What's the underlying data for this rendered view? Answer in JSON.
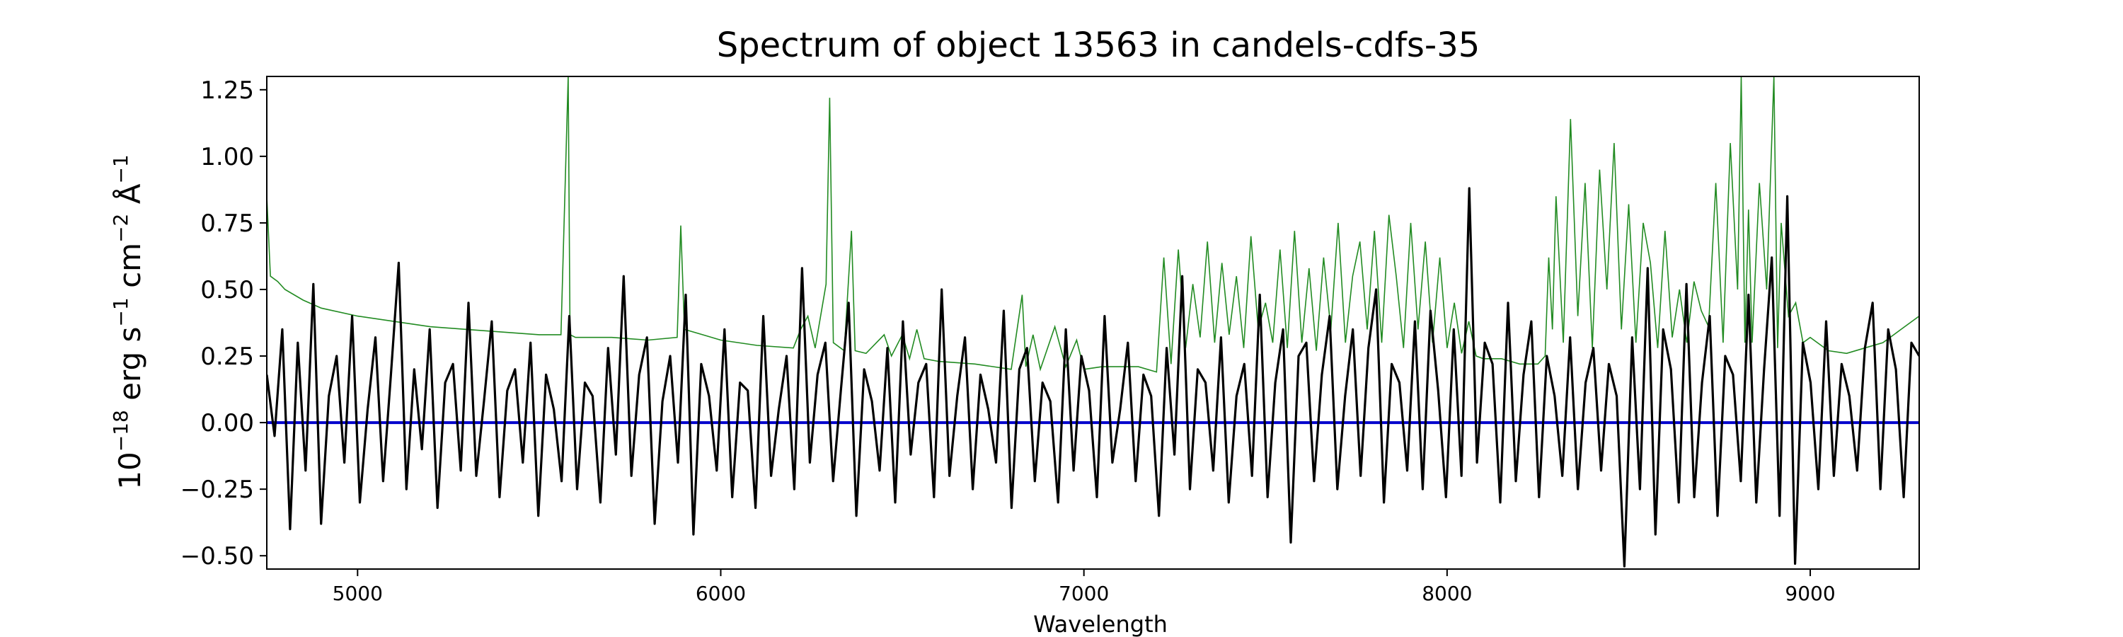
{
  "chart_data": {
    "type": "line",
    "title": "Spectrum of object 13563 in candels-cdfs-35",
    "xlabel": "Wavelength",
    "ylabel": {
      "prefix": "10",
      "exp1": "−18",
      "unit1": " erg s",
      "exp2": "−1",
      "unit2": " cm",
      "exp3": "−2",
      "unit3": " Å",
      "exp4": "−1"
    },
    "xlim": [
      4750,
      9300
    ],
    "ylim": [
      -0.55,
      1.3
    ],
    "x_ticks": [
      5000,
      6000,
      7000,
      8000,
      9000
    ],
    "x_tick_labels": [
      "5000",
      "6000",
      "7000",
      "8000",
      "9000"
    ],
    "y_ticks": [
      -0.5,
      -0.25,
      0.0,
      0.25,
      0.5,
      0.75,
      1.0,
      1.25
    ],
    "y_tick_labels": [
      "−0.50",
      "−0.25",
      "0.00",
      "0.25",
      "0.50",
      "0.75",
      "1.00",
      "1.25"
    ],
    "grid": false,
    "series": [
      {
        "role": "error",
        "color": "#228B22",
        "x": [
          4750,
          4760,
          4780,
          4800,
          4850,
          4900,
          5000,
          5100,
          5200,
          5300,
          5400,
          5500,
          5560,
          5580,
          5585,
          5600,
          5700,
          5800,
          5880,
          5890,
          5900,
          5950,
          6000,
          6100,
          6200,
          6220,
          6240,
          6260,
          6290,
          6300,
          6310,
          6340,
          6360,
          6370,
          6400,
          6450,
          6470,
          6500,
          6520,
          6540,
          6560,
          6600,
          6700,
          6800,
          6830,
          6840,
          6860,
          6880,
          6920,
          6950,
          6980,
          7000,
          7050,
          7100,
          7150,
          7200,
          7220,
          7240,
          7260,
          7280,
          7300,
          7320,
          7340,
          7360,
          7380,
          7400,
          7420,
          7440,
          7460,
          7480,
          7500,
          7520,
          7540,
          7560,
          7580,
          7600,
          7620,
          7640,
          7660,
          7680,
          7700,
          7720,
          7740,
          7760,
          7780,
          7800,
          7820,
          7840,
          7860,
          7880,
          7900,
          7920,
          7940,
          7960,
          7980,
          8000,
          8020,
          8040,
          8060,
          8080,
          8100,
          8150,
          8200,
          8250,
          8270,
          8280,
          8290,
          8300,
          8320,
          8340,
          8360,
          8380,
          8400,
          8420,
          8440,
          8460,
          8480,
          8500,
          8520,
          8540,
          8560,
          8580,
          8600,
          8620,
          8640,
          8660,
          8680,
          8700,
          8720,
          8740,
          8760,
          8780,
          8800,
          8810,
          8820,
          8830,
          8840,
          8860,
          8880,
          8900,
          8910,
          8920,
          8940,
          8960,
          8980,
          9000,
          9050,
          9100,
          9150,
          9200,
          9250,
          9280,
          9300
        ],
        "y": [
          0.85,
          0.55,
          0.53,
          0.5,
          0.46,
          0.43,
          0.4,
          0.38,
          0.36,
          0.35,
          0.34,
          0.33,
          0.33,
          1.3,
          0.33,
          0.32,
          0.32,
          0.31,
          0.32,
          0.74,
          0.35,
          0.33,
          0.31,
          0.29,
          0.28,
          0.35,
          0.4,
          0.28,
          0.52,
          1.22,
          0.3,
          0.27,
          0.72,
          0.27,
          0.26,
          0.33,
          0.25,
          0.33,
          0.24,
          0.35,
          0.24,
          0.23,
          0.22,
          0.2,
          0.48,
          0.21,
          0.33,
          0.2,
          0.36,
          0.21,
          0.31,
          0.2,
          0.21,
          0.21,
          0.21,
          0.19,
          0.62,
          0.22,
          0.65,
          0.28,
          0.52,
          0.32,
          0.68,
          0.3,
          0.6,
          0.33,
          0.55,
          0.28,
          0.7,
          0.35,
          0.45,
          0.3,
          0.65,
          0.28,
          0.72,
          0.3,
          0.58,
          0.27,
          0.62,
          0.35,
          0.75,
          0.3,
          0.55,
          0.68,
          0.35,
          0.72,
          0.3,
          0.78,
          0.55,
          0.28,
          0.75,
          0.35,
          0.68,
          0.3,
          0.62,
          0.28,
          0.45,
          0.26,
          0.38,
          0.25,
          0.24,
          0.24,
          0.22,
          0.22,
          0.25,
          0.62,
          0.35,
          0.85,
          0.3,
          1.14,
          0.4,
          0.9,
          0.28,
          0.95,
          0.5,
          1.05,
          0.35,
          0.82,
          0.3,
          0.75,
          0.6,
          0.28,
          0.72,
          0.32,
          0.5,
          0.3,
          0.53,
          0.42,
          0.36,
          0.9,
          0.3,
          1.05,
          0.5,
          1.3,
          0.3,
          0.8,
          0.3,
          0.9,
          0.5,
          1.3,
          0.28,
          0.75,
          0.4,
          0.45,
          0.3,
          0.32,
          0.27,
          0.26,
          0.28,
          0.3,
          0.35,
          0.38,
          0.4
        ]
      },
      {
        "role": "zero",
        "color": "#0000CC",
        "y_value": 0.0
      },
      {
        "role": "flux",
        "color": "#000000",
        "x_start": 4750,
        "x_end": 9300,
        "y": [
          0.18,
          -0.05,
          0.35,
          -0.4,
          0.3,
          -0.18,
          0.52,
          -0.38,
          0.1,
          0.25,
          -0.15,
          0.4,
          -0.3,
          0.05,
          0.32,
          -0.22,
          0.18,
          0.6,
          -0.25,
          0.2,
          -0.1,
          0.35,
          -0.32,
          0.15,
          0.22,
          -0.18,
          0.45,
          -0.2,
          0.08,
          0.38,
          -0.28,
          0.12,
          0.2,
          -0.15,
          0.3,
          -0.35,
          0.18,
          0.05,
          -0.22,
          0.4,
          -0.25,
          0.15,
          0.1,
          -0.3,
          0.28,
          -0.12,
          0.55,
          -0.2,
          0.18,
          0.32,
          -0.38,
          0.08,
          0.25,
          -0.15,
          0.48,
          -0.42,
          0.22,
          0.1,
          -0.18,
          0.35,
          -0.28,
          0.15,
          0.12,
          -0.32,
          0.4,
          -0.2,
          0.05,
          0.25,
          -0.25,
          0.58,
          -0.15,
          0.18,
          0.3,
          -0.22,
          0.12,
          0.45,
          -0.35,
          0.2,
          0.08,
          -0.18,
          0.28,
          -0.3,
          0.38,
          -0.12,
          0.15,
          0.22,
          -0.28,
          0.5,
          -0.2,
          0.1,
          0.32,
          -0.25,
          0.18,
          0.05,
          -0.15,
          0.42,
          -0.32,
          0.2,
          0.28,
          -0.22,
          0.15,
          0.08,
          -0.3,
          0.35,
          -0.18,
          0.25,
          0.12,
          -0.28,
          0.4,
          -0.15,
          0.05,
          0.3,
          -0.22,
          0.18,
          0.1,
          -0.35,
          0.28,
          -0.12,
          0.55,
          -0.25,
          0.2,
          0.15,
          -0.18,
          0.32,
          -0.3,
          0.1,
          0.22,
          -0.2,
          0.48,
          -0.28,
          0.15,
          0.35,
          -0.45,
          0.25,
          0.3,
          -0.22,
          0.18,
          0.4,
          -0.25,
          0.1,
          0.35,
          -0.2,
          0.28,
          0.5,
          -0.3,
          0.22,
          0.15,
          -0.18,
          0.38,
          -0.25,
          0.42,
          0.12,
          -0.28,
          0.35,
          -0.2,
          0.88,
          -0.15,
          0.3,
          0.22,
          -0.3,
          0.45,
          -0.22,
          0.18,
          0.38,
          -0.28,
          0.25,
          0.1,
          -0.2,
          0.32,
          -0.25,
          0.15,
          0.28,
          -0.18,
          0.22,
          0.1,
          -0.54,
          0.32,
          -0.25,
          0.58,
          -0.42,
          0.35,
          0.2,
          -0.3,
          0.52,
          -0.28,
          0.15,
          0.4,
          -0.35,
          0.25,
          0.18,
          -0.22,
          0.48,
          -0.3,
          0.2,
          0.62,
          -0.35,
          0.85,
          -0.53,
          0.3,
          0.15,
          -0.25,
          0.38,
          -0.2,
          0.22,
          0.1,
          -0.18,
          0.28,
          0.45,
          -0.25,
          0.35,
          0.2,
          -0.28,
          0.3,
          0.25
        ]
      }
    ]
  }
}
